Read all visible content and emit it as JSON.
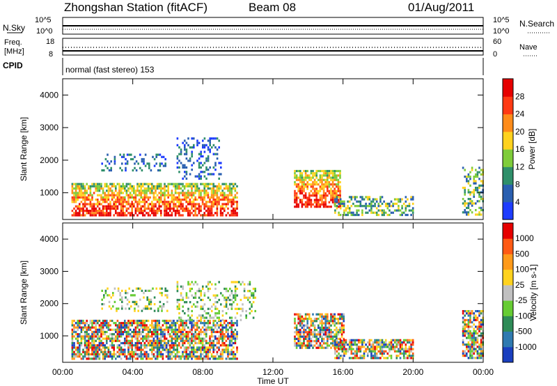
{
  "header": {
    "station": "Zhongshan Station (fitACF)",
    "beam": "Beam 08",
    "date": "01/Aug/2011"
  },
  "noise_panel": {
    "left_label": "N.Sky",
    "left_ticks": [
      "10^5",
      "10^0"
    ],
    "right_label": "N.Search",
    "right_ticks": [
      "10^5",
      "10^0"
    ]
  },
  "freq_panel": {
    "left_label_1": "Freq.",
    "left_label_2": "[MHz]",
    "left_ticks": [
      "18",
      "8"
    ],
    "right_label": "Nave",
    "right_ticks": [
      "60",
      "0"
    ]
  },
  "cpid": {
    "label": "CPID",
    "text": "normal (fast stereo) 153"
  },
  "chart_data": [
    {
      "type": "heatmap",
      "quantity": "Power",
      "ylabel": "Slant Range [km]",
      "yticks": [
        1000,
        2000,
        3000,
        4000
      ],
      "ylim": [
        180,
        4500
      ],
      "xlim_hours": [
        0,
        24
      ],
      "colorbar_label": "Power [dB]",
      "colorbar_ticks": [
        "4",
        "8",
        "12",
        "16",
        "20",
        "24",
        "28"
      ],
      "colors": [
        "#1e3cff",
        "#2a5fb0",
        "#2f8f6a",
        "#7fcc3a",
        "#ffd21e",
        "#ff8c1a",
        "#ff3a14",
        "#e60000"
      ],
      "echo_regions": [
        {
          "t0": 0.5,
          "t1": 10.0,
          "r0": 300,
          "r1": 1300,
          "level": "high"
        },
        {
          "t0": 2.2,
          "t1": 6.0,
          "r0": 1700,
          "r1": 2200,
          "level": "low"
        },
        {
          "t0": 6.5,
          "t1": 9.0,
          "r0": 1400,
          "r1": 2700,
          "level": "low"
        },
        {
          "t0": 13.2,
          "t1": 15.8,
          "r0": 600,
          "r1": 1700,
          "level": "high"
        },
        {
          "t0": 15.5,
          "t1": 20.0,
          "r0": 300,
          "r1": 900,
          "level": "mid"
        },
        {
          "t0": 22.8,
          "t1": 24.0,
          "r0": 300,
          "r1": 1800,
          "level": "mid"
        }
      ]
    },
    {
      "type": "heatmap",
      "quantity": "Velocity",
      "ylabel": "Slant Range [km]",
      "yticks": [
        1000,
        2000,
        3000,
        4000
      ],
      "ylim": [
        180,
        4500
      ],
      "xlim_hours": [
        0,
        24
      ],
      "xticks": [
        "00:00",
        "04:00",
        "08:00",
        "12:00",
        "16:00",
        "20:00",
        "00:00"
      ],
      "xlabel": "Time UT",
      "colorbar_label": "Velocity [m s-1]",
      "colorbar_ticks": [
        "1000",
        "500",
        "100",
        "25",
        "-25",
        "-100",
        "-500",
        "-1000"
      ],
      "colors": [
        "#1a3fbf",
        "#2f7ab0",
        "#2e8b57",
        "#66cc33",
        "#c0c0c0",
        "#ffd21e",
        "#ff9a1a",
        "#ff5a14",
        "#e60000"
      ],
      "echo_regions": [
        {
          "t0": 0.5,
          "t1": 10.0,
          "r0": 300,
          "r1": 1500,
          "level": "mixed"
        },
        {
          "t0": 2.2,
          "t1": 6.0,
          "r0": 1800,
          "r1": 2500,
          "level": "low"
        },
        {
          "t0": 6.5,
          "t1": 11.0,
          "r0": 1500,
          "r1": 2700,
          "level": "low"
        },
        {
          "t0": 13.2,
          "t1": 16.0,
          "r0": 600,
          "r1": 1700,
          "level": "mixed"
        },
        {
          "t0": 15.5,
          "t1": 20.0,
          "r0": 300,
          "r1": 900,
          "level": "mixed"
        },
        {
          "t0": 22.8,
          "t1": 24.0,
          "r0": 300,
          "r1": 1800,
          "level": "mixed"
        }
      ]
    }
  ]
}
